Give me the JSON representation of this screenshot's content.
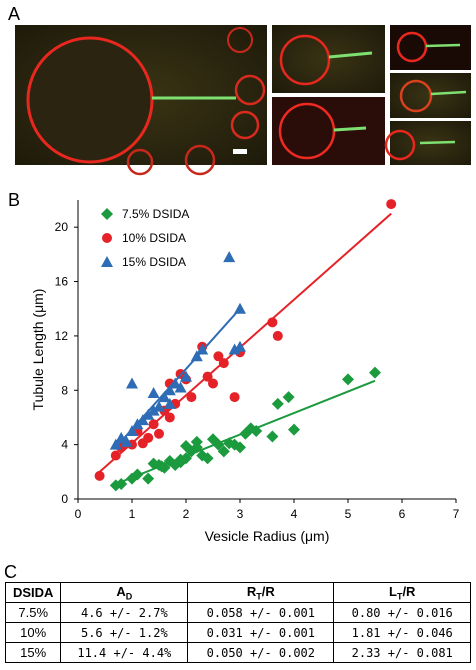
{
  "panel_labels": [
    "A",
    "B",
    "C"
  ],
  "chart_data": {
    "type": "scatter",
    "x_label": "Vesicle Radius (μm)",
    "y_label": "Tubule Length (μm)",
    "xlim": [
      0,
      7
    ],
    "xticks": [
      0,
      1,
      2,
      3,
      4,
      5,
      6,
      7
    ],
    "ylim": [
      0,
      22
    ],
    "yticks": [
      0,
      4,
      8,
      12,
      16,
      20
    ],
    "legend": "top-left",
    "series": [
      {
        "name": "7.5% DSIDA",
        "color": "#1b9a3e",
        "marker": "diamond",
        "x": [
          0.7,
          0.8,
          1.0,
          1.1,
          1.3,
          1.5,
          1.6,
          1.7,
          1.8,
          1.9,
          2.0,
          2.1,
          2.2,
          2.3,
          2.4,
          2.6,
          2.7,
          2.9,
          3.0,
          3.2,
          3.3,
          3.6,
          3.7,
          3.9,
          4.0,
          5.0,
          5.5,
          1.4,
          1.55,
          2.0,
          2.2,
          2.5,
          2.8,
          3.1,
          1.9
        ],
        "y": [
          1.0,
          1.1,
          1.5,
          1.8,
          1.5,
          2.5,
          2.3,
          2.8,
          2.5,
          2.9,
          3.0,
          3.5,
          3.8,
          3.2,
          3.0,
          4.0,
          3.5,
          4.0,
          3.8,
          5.2,
          5.0,
          4.6,
          7.0,
          7.5,
          5.1,
          8.8,
          9.3,
          2.6,
          2.4,
          3.9,
          4.2,
          4.4,
          4.1,
          4.8,
          2.7
        ],
        "fit": {
          "x": [
            0.7,
            5.5
          ],
          "y": [
            1.1,
            8.7
          ]
        }
      },
      {
        "name": "10% DSIDA",
        "color": "#e52228",
        "marker": "circle",
        "x": [
          0.4,
          0.7,
          0.8,
          1.0,
          1.1,
          1.3,
          1.4,
          1.5,
          1.6,
          1.7,
          1.8,
          1.9,
          2.0,
          2.1,
          2.3,
          2.4,
          2.5,
          2.6,
          2.7,
          2.9,
          3.0,
          3.6,
          3.7,
          5.8,
          1.2,
          1.7
        ],
        "y": [
          1.7,
          3.2,
          3.8,
          4.0,
          5.0,
          4.5,
          5.5,
          4.8,
          6.5,
          6.0,
          7.0,
          9.2,
          8.8,
          7.5,
          11.2,
          9.0,
          8.5,
          10.5,
          10.0,
          7.5,
          10.8,
          13.0,
          12.0,
          21.7,
          4.1,
          8.5
        ],
        "fit": {
          "x": [
            0.4,
            5.8
          ],
          "y": [
            2.0,
            21.0
          ]
        }
      },
      {
        "name": "15% DSIDA",
        "color": "#2e6cb5",
        "marker": "triangle",
        "x": [
          0.7,
          0.8,
          0.9,
          1.0,
          1.1,
          1.2,
          1.3,
          1.4,
          1.5,
          1.6,
          1.7,
          1.8,
          1.0,
          1.4,
          2.0,
          2.2,
          2.3,
          2.8,
          2.9,
          3.0,
          3.0,
          1.7,
          1.9
        ],
        "y": [
          4.0,
          4.5,
          4.2,
          5.0,
          5.5,
          5.8,
          6.2,
          6.5,
          6.8,
          7.5,
          8.0,
          8.5,
          8.5,
          7.8,
          9.0,
          10.5,
          11.0,
          17.8,
          11.0,
          11.2,
          14.0,
          7.0,
          8.2
        ],
        "fit": {
          "x": [
            0.7,
            3.0
          ],
          "y": [
            3.8,
            14.0
          ]
        }
      }
    ]
  },
  "table": {
    "header": [
      {
        "text": "DSIDA"
      },
      {
        "text": "A",
        "sub": "D"
      },
      {
        "text": "R",
        "sub": "T",
        "suffix": "/R"
      },
      {
        "text": "L",
        "sub": "T",
        "suffix": "/R"
      }
    ],
    "rows": [
      [
        "7.5%",
        "4.6 +/- 2.7%",
        "0.058 +/- 0.001",
        "0.80 +/- 0.016"
      ],
      [
        "10%",
        "5.6 +/- 1.2%",
        "0.031 +/- 0.001",
        "1.81 +/- 0.046"
      ],
      [
        "15%",
        "11.4 +/- 4.4%",
        "0.050 +/- 0.002",
        "2.33 +/- 0.081"
      ]
    ]
  }
}
